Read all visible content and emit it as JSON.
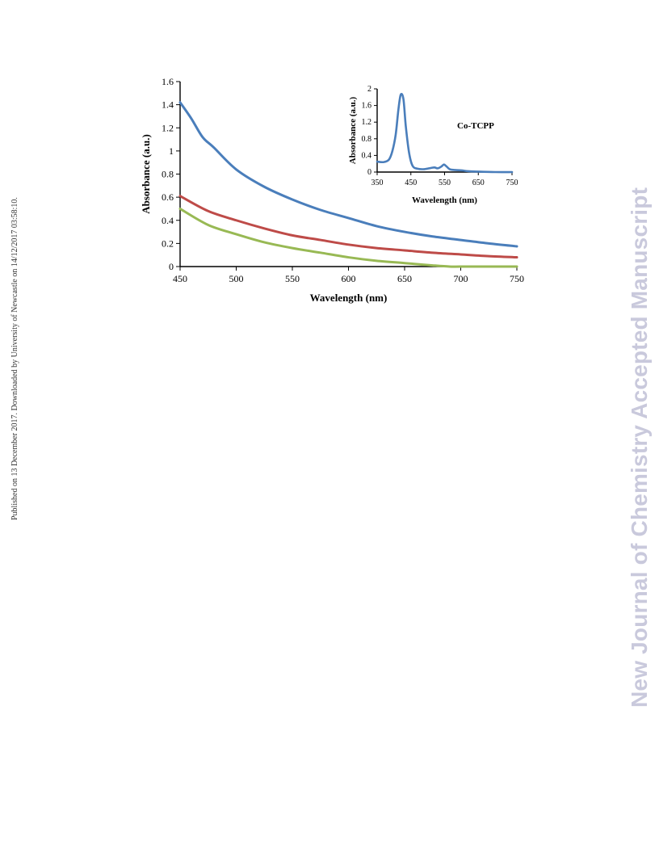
{
  "side_note": "Published on 13 December 2017. Downloaded by University of Newcastle on 14/12/2017 03:58:10.",
  "watermark": "New Journal of Chemistry Accepted Manuscript",
  "chart_data": [
    {
      "type": "line",
      "xlabel": "Wavelength  (nm)",
      "ylabel": "Absorbance  (a.u.)",
      "xlim": [
        450,
        750
      ],
      "ylim": [
        0,
        1.6
      ],
      "xticks": [
        "450",
        "500",
        "550",
        "600",
        "650",
        "700",
        "750"
      ],
      "yticks": [
        "0",
        "0.2",
        "0.4",
        "0.6",
        "0.8",
        "1",
        "1.2",
        "1.4",
        "1.6"
      ],
      "grid": false,
      "series": [
        {
          "color": "#4a7ebb",
          "x": [
            450,
            460,
            470,
            480,
            500,
            525,
            550,
            575,
            600,
            625,
            650,
            675,
            700,
            725,
            750
          ],
          "y": [
            1.42,
            1.28,
            1.12,
            1.03,
            0.84,
            0.69,
            0.58,
            0.49,
            0.42,
            0.35,
            0.3,
            0.26,
            0.23,
            0.2,
            0.175
          ]
        },
        {
          "color": "#be4b48",
          "x": [
            450,
            475,
            500,
            525,
            550,
            575,
            600,
            625,
            650,
            675,
            700,
            725,
            750
          ],
          "y": [
            0.61,
            0.48,
            0.4,
            0.33,
            0.27,
            0.23,
            0.19,
            0.16,
            0.14,
            0.12,
            0.105,
            0.09,
            0.08
          ]
        },
        {
          "color": "#98b954",
          "x": [
            450,
            475,
            500,
            525,
            550,
            575,
            600,
            625,
            650,
            675,
            690,
            700,
            725,
            750
          ],
          "y": [
            0.5,
            0.36,
            0.28,
            0.21,
            0.16,
            0.12,
            0.08,
            0.05,
            0.03,
            0.01,
            0.0,
            0.0,
            0.0,
            0.0
          ]
        }
      ]
    },
    {
      "type": "line",
      "annotation": "Co-TCPP",
      "xlabel": "Wavelength (nm)",
      "ylabel": "Absorbance (a.u.)",
      "xlim": [
        350,
        750
      ],
      "ylim": [
        0,
        2
      ],
      "xticks": [
        "350",
        "450",
        "550",
        "650",
        "750"
      ],
      "yticks": [
        "0",
        "0.4",
        "0.8",
        "1.2",
        "1.6",
        "2"
      ],
      "grid": false,
      "series": [
        {
          "color": "#4a7ebb",
          "x": [
            350,
            370,
            385,
            395,
            405,
            413,
            420,
            428,
            435,
            445,
            455,
            470,
            490,
            510,
            520,
            530,
            540,
            548,
            555,
            565,
            580,
            600,
            620,
            650,
            700,
            750
          ],
          "y": [
            0.25,
            0.24,
            0.3,
            0.5,
            0.9,
            1.5,
            1.86,
            1.75,
            1.1,
            0.45,
            0.15,
            0.08,
            0.07,
            0.1,
            0.11,
            0.09,
            0.13,
            0.18,
            0.14,
            0.07,
            0.05,
            0.04,
            0.02,
            0.01,
            0.0,
            0.0
          ]
        }
      ]
    }
  ]
}
